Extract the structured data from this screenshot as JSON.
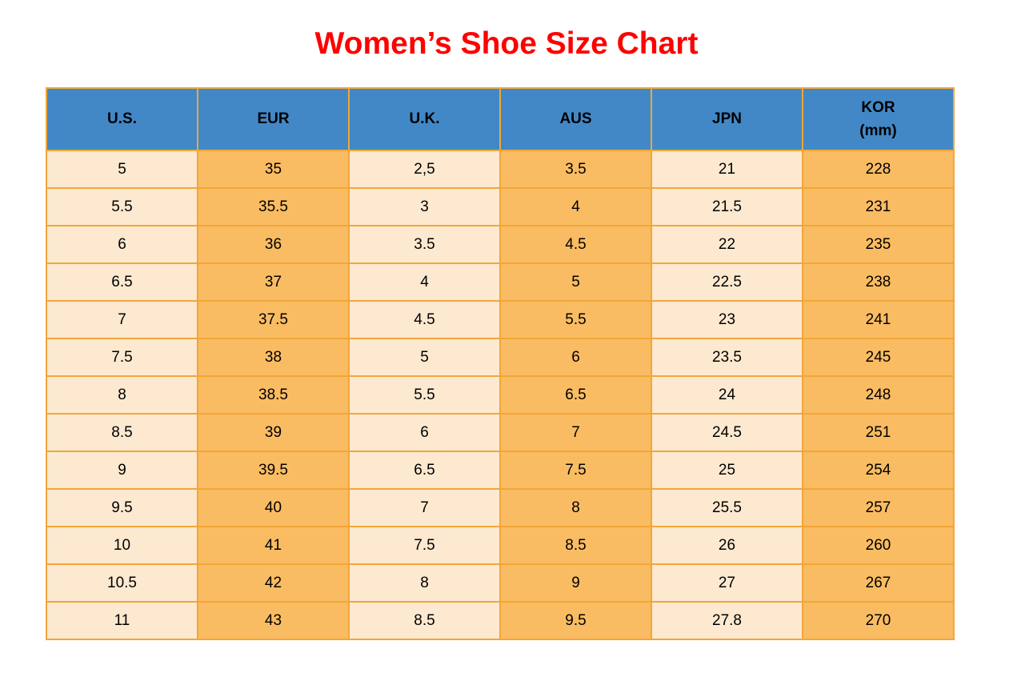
{
  "title": "Women’s Shoe Size Chart",
  "colors": {
    "title-color": "#FF0000",
    "header-bg": "#4288C6",
    "col-light": "#FCE9D0",
    "col-dark": "#FABC62",
    "border-color": "#F2A639",
    "text-color": "#000000",
    "page-bg": "#FFFFFF"
  },
  "chart_data": {
    "type": "table",
    "title": "Women’s Shoe Size Chart",
    "columns": [
      {
        "label_lines": [
          "U.S."
        ],
        "shade": "light"
      },
      {
        "label_lines": [
          "EUR"
        ],
        "shade": "dark"
      },
      {
        "label_lines": [
          "U.K."
        ],
        "shade": "light"
      },
      {
        "label_lines": [
          "AUS"
        ],
        "shade": "dark"
      },
      {
        "label_lines": [
          "JPN"
        ],
        "shade": "light"
      },
      {
        "label_lines": [
          "KOR",
          "(mm)"
        ],
        "shade": "dark"
      }
    ],
    "rows": [
      [
        "5",
        "35",
        "2,5",
        "3.5",
        "21",
        "228"
      ],
      [
        "5.5",
        "35.5",
        "3",
        "4",
        "21.5",
        "231"
      ],
      [
        "6",
        "36",
        "3.5",
        "4.5",
        "22",
        "235"
      ],
      [
        "6.5",
        "37",
        "4",
        "5",
        "22.5",
        "238"
      ],
      [
        "7",
        "37.5",
        "4.5",
        "5.5",
        "23",
        "241"
      ],
      [
        "7.5",
        "38",
        "5",
        "6",
        "23.5",
        "245"
      ],
      [
        "8",
        "38.5",
        "5.5",
        "6.5",
        "24",
        "248"
      ],
      [
        "8.5",
        "39",
        "6",
        "7",
        "24.5",
        "251"
      ],
      [
        "9",
        "39.5",
        "6.5",
        "7.5",
        "25",
        "254"
      ],
      [
        "9.5",
        "40",
        "7",
        "8",
        "25.5",
        "257"
      ],
      [
        "10",
        "41",
        "7.5",
        "8.5",
        "26",
        "260"
      ],
      [
        "10.5",
        "42",
        "8",
        "9",
        "27",
        "267"
      ],
      [
        "11",
        "43",
        "8.5",
        "9.5",
        "27.8",
        "270"
      ]
    ],
    "layout": {
      "header_text_color": "#000000",
      "grid": "on",
      "column_shading_alternates": true
    }
  }
}
